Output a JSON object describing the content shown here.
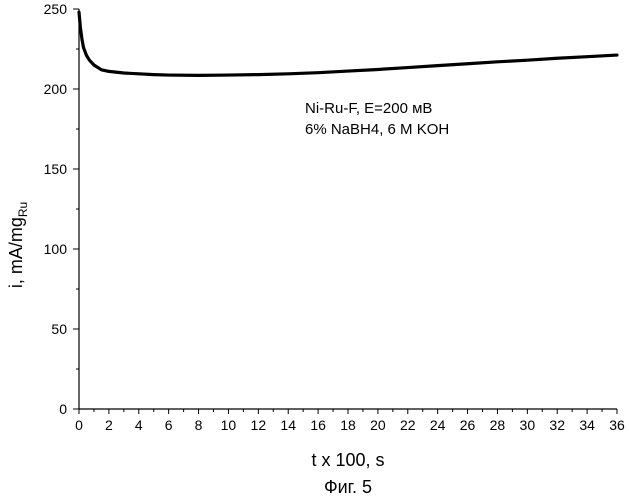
{
  "chart_data": {
    "type": "line",
    "xlabel": "t x 100, s",
    "ylabel_main": "i, mA/mg",
    "ylabel_sub": "Ru",
    "xlim": [
      0,
      36
    ],
    "ylim": [
      0,
      250
    ],
    "x_ticks": [
      0,
      2,
      4,
      6,
      8,
      10,
      12,
      14,
      16,
      18,
      20,
      22,
      24,
      26,
      28,
      30,
      32,
      34,
      36
    ],
    "y_ticks": [
      0,
      50,
      100,
      150,
      200,
      250
    ],
    "grid": false,
    "annotation_lines": [
      "Ni-Ru-F, E=200 мВ",
      "6% NaBH4, 6 M KOH"
    ],
    "caption": "Фиг. 5",
    "series": [
      {
        "x": [
          0,
          0.1,
          0.2,
          0.3,
          0.5,
          0.7,
          1.0,
          1.5,
          2,
          3,
          4,
          5,
          6,
          8,
          10,
          12,
          14,
          16,
          18,
          20,
          22,
          24,
          26,
          28,
          30,
          32,
          34,
          36
        ],
        "y": [
          248,
          238,
          231,
          226,
          221,
          218,
          215,
          212,
          211,
          210,
          209.5,
          209,
          208.7,
          208.5,
          208.7,
          209,
          209.5,
          210.2,
          211.2,
          212.2,
          213.4,
          214.6,
          215.8,
          217,
          218,
          219.2,
          220.2,
          221.2
        ]
      }
    ]
  }
}
